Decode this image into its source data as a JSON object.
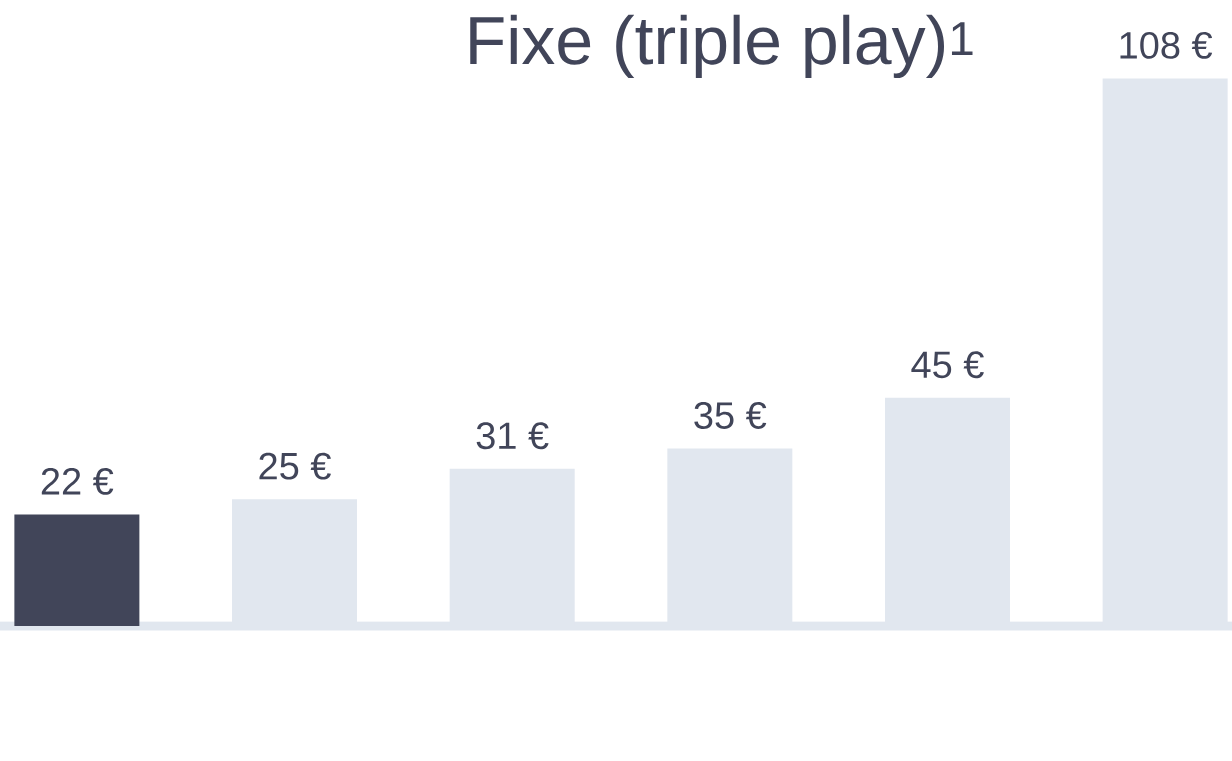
{
  "chart_data": {
    "type": "bar",
    "title": "Fixe (triple play)$^{1}$",
    "categories": [
      null,
      null,
      null,
      null,
      null,
      null
    ],
    "values": [
      22,
      25,
      31,
      35,
      45,
      108
    ],
    "colors": [
      "#414559",
      "#e1e7ef",
      "#e1e7ef",
      "#e1e7ef",
      "#e1e7ef",
      "#e1e7ef"
    ],
    "value_labels": [
      "22 €",
      "25 €",
      "31 €",
      "35 €",
      "45 €",
      "108 €"
    ],
    "tick_labels": false
  }
}
